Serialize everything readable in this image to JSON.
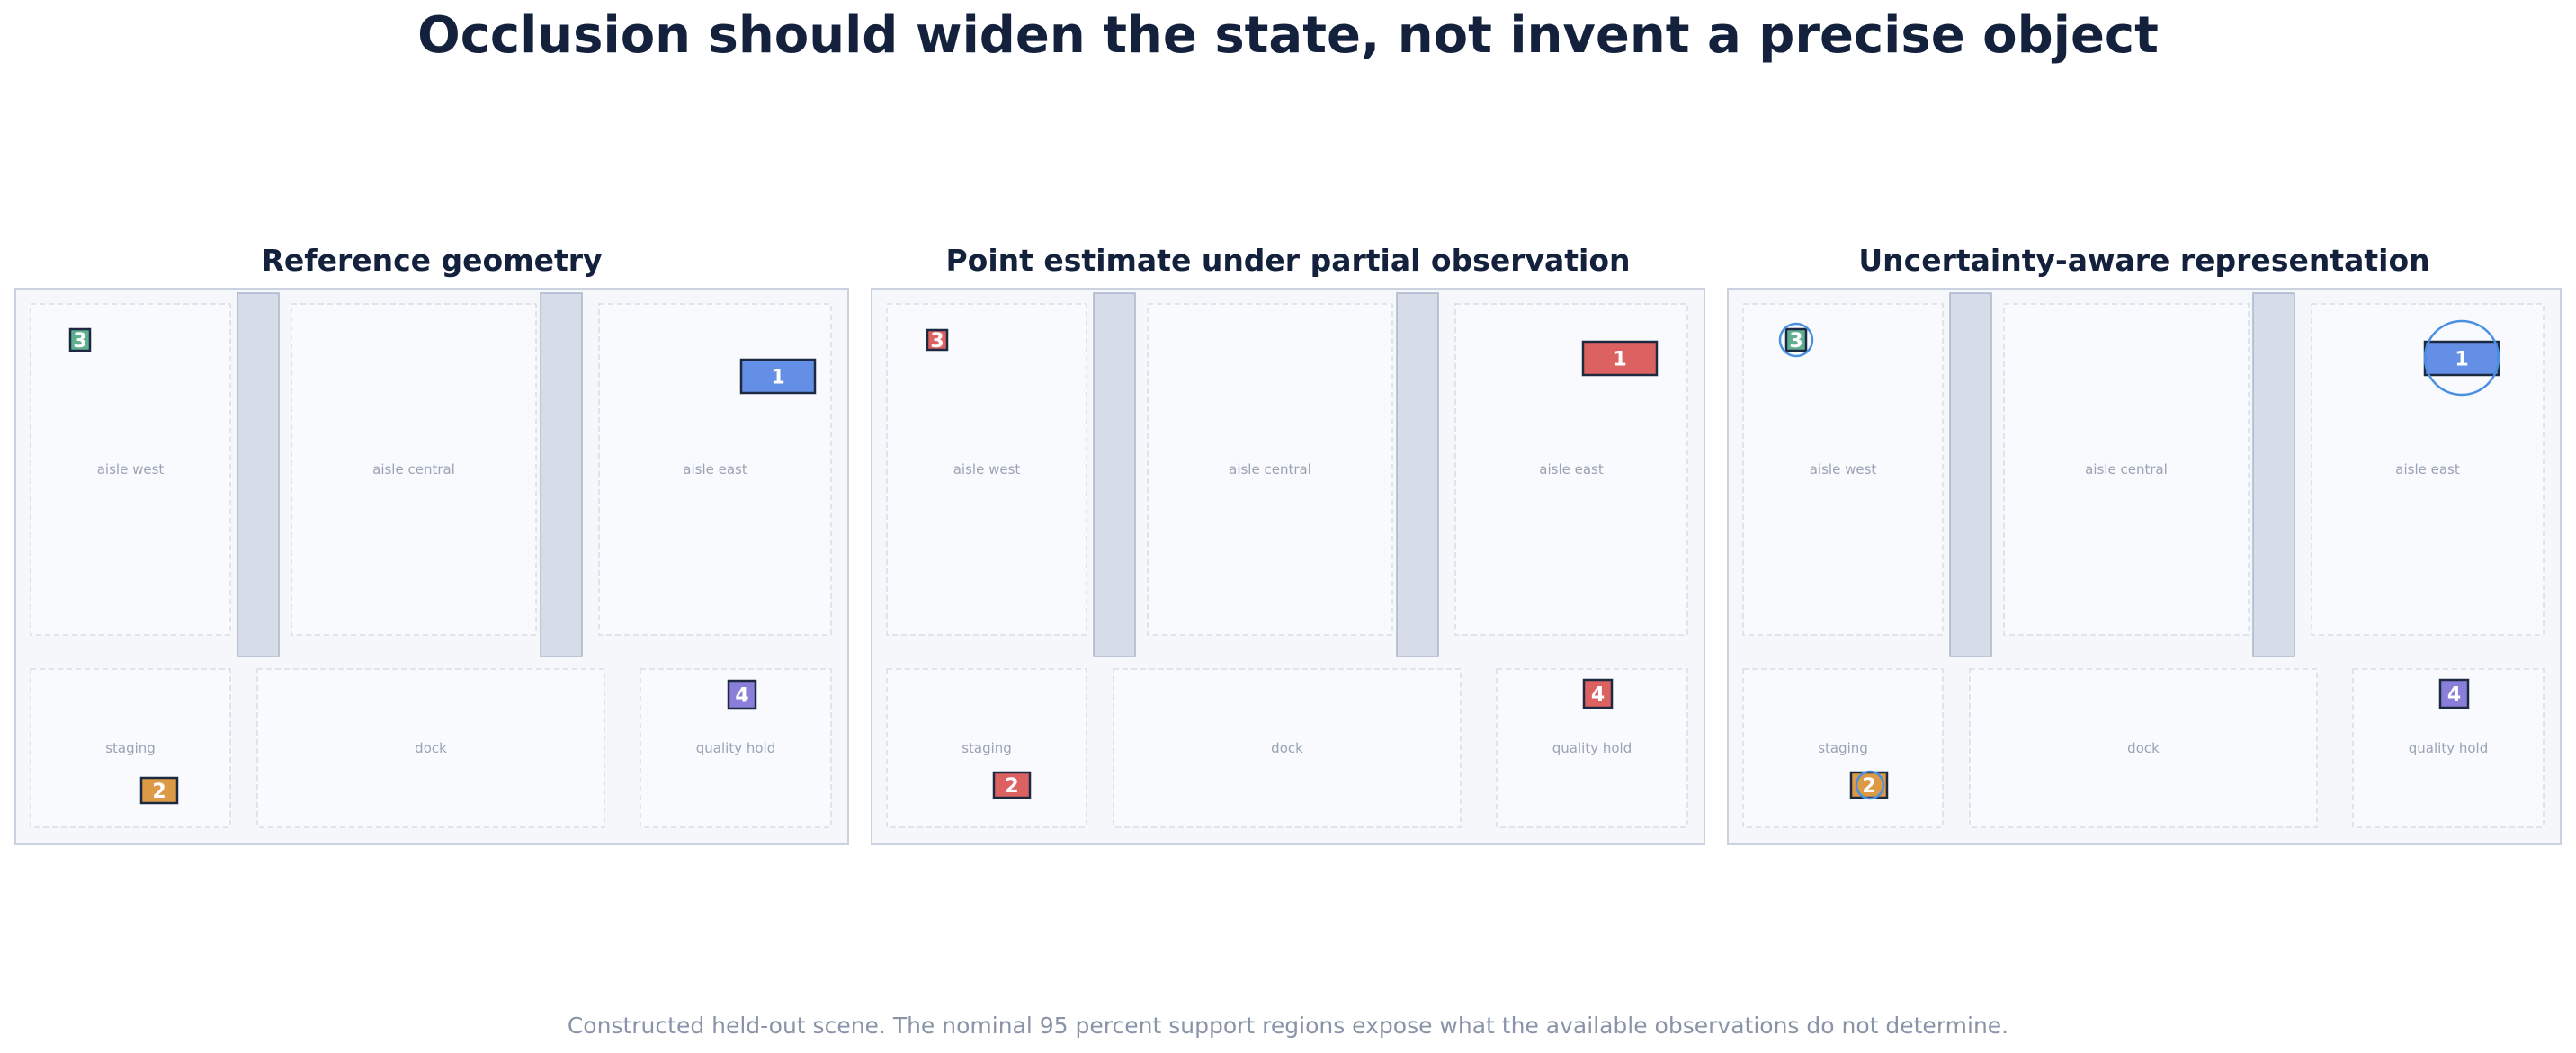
{
  "title": "Occlusion should widen the state, not invent a precise object",
  "caption": "Constructed held-out scene. The nominal 95 percent support regions expose what the available observations do not determine.",
  "zone_labels": {
    "aisle_west": "aisle west",
    "aisle_central": "aisle central",
    "aisle_east": "aisle east",
    "staging": "staging",
    "dock": "dock",
    "quality_hold": "quality hold"
  },
  "colors": {
    "navy": "#14213d",
    "blue": "#648fe6",
    "orange": "#dc9a46",
    "green": "#5fae8f",
    "purple": "#8a7fd8",
    "red": "#dc6262",
    "uncertainty_ring": "#4a90e2",
    "shelf": "#d6dde8",
    "panel_bg": "#f5f7fb"
  },
  "panels": [
    {
      "title": "Reference geometry",
      "objects": [
        {
          "id": "1",
          "color": "#648fe6"
        },
        {
          "id": "2",
          "color": "#dc9a46"
        },
        {
          "id": "3",
          "color": "#5fae8f"
        },
        {
          "id": "4",
          "color": "#8a7fd8"
        }
      ]
    },
    {
      "title": "Point estimate under partial observation",
      "objects": [
        {
          "id": "1",
          "color": "#dc6262"
        },
        {
          "id": "2",
          "color": "#dc6262"
        },
        {
          "id": "3",
          "color": "#dc6262"
        },
        {
          "id": "4",
          "color": "#dc6262"
        }
      ]
    },
    {
      "title": "Uncertainty-aware representation",
      "objects": [
        {
          "id": "1",
          "color": "#648fe6",
          "support_region": true
        },
        {
          "id": "2",
          "color": "#dc9a46",
          "support_region": true
        },
        {
          "id": "3",
          "color": "#5fae8f",
          "support_region": true
        },
        {
          "id": "4",
          "color": "#8a7fd8",
          "support_region": false
        }
      ]
    }
  ]
}
